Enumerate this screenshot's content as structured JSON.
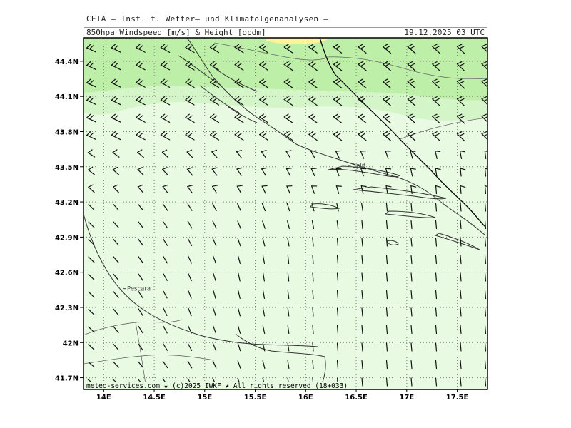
{
  "header": {
    "institute": "CETA – Inst. f. Wetter– und Klimafolgenanalysen –",
    "product": "850hpa Windspeed [m/s] & Height [gpdm]",
    "valid_time": "19.12.2025 03 UTC"
  },
  "footer": "meteo-services.com ★ (c)2025 IWKF ★ All rights reserved (18+033)",
  "axes": {
    "lat_labels": [
      "44.4N",
      "44.1N",
      "43.8N",
      "43.5N",
      "43.2N",
      "42.9N",
      "42.6N",
      "42.3N",
      "42N",
      "41.7N"
    ],
    "lat_values": [
      44.4,
      44.1,
      43.8,
      43.5,
      43.2,
      42.9,
      42.6,
      42.3,
      42.0,
      41.7
    ],
    "lon_labels": [
      "14E",
      "14.5E",
      "15E",
      "15.5E",
      "16E",
      "16.5E",
      "17E",
      "17.5E"
    ],
    "lon_values": [
      14.0,
      14.5,
      15.0,
      15.5,
      16.0,
      16.5,
      17.0,
      17.5
    ],
    "lat_range": [
      41.6,
      44.6
    ],
    "lon_range": [
      13.8,
      17.8
    ]
  },
  "cities": [
    {
      "name": "Split",
      "lat": 43.51,
      "lon": 16.44
    },
    {
      "name": "Pescara",
      "lat": 42.46,
      "lon": 14.21
    }
  ],
  "colors": {
    "wind_light": "#e8fae2",
    "wind_mid": "#d3f5c8",
    "wind_strong": "#bdefa8",
    "wind_peak": "#fff39a",
    "coast": "#333333",
    "border": "#000000",
    "grid": "#7f7f7f"
  }
}
